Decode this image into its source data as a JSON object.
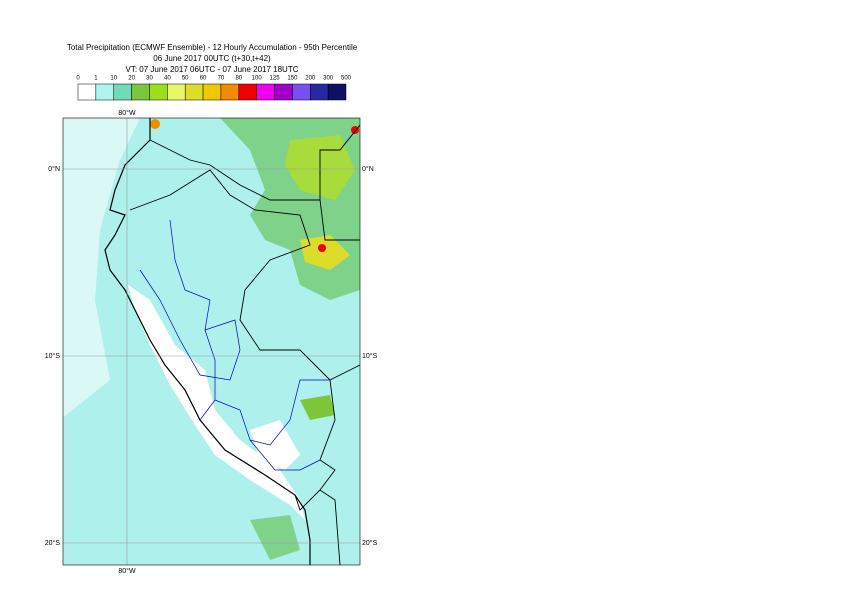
{
  "header": {
    "title": "Total Precipitation (ECMWF Ensemble) - 12 Hourly Accumulation - 95th Percentile",
    "run": "06 June 2017 00UTC (t+30,t+42)",
    "valid": "VT: 07 June 2017 06UTC - 07 June 2017 18UTC"
  },
  "legend": {
    "levels": [
      0,
      1,
      10,
      20,
      30,
      40,
      50,
      60,
      70,
      80,
      100,
      125,
      150,
      200,
      300,
      500
    ],
    "colors": [
      "#ffffff",
      "#aef5f0",
      "#6fdbb8",
      "#7cc63a",
      "#9ade1c",
      "#e8f766",
      "#dcdc2a",
      "#f0c800",
      "#f08c00",
      "#f00000",
      "#f000f0",
      "#a000c8",
      "#7850f0",
      "#2828a0",
      "#101060"
    ]
  },
  "map": {
    "lon_labels": [
      "80°W"
    ],
    "lat_labels": [
      "0°N",
      "10°S",
      "20°S"
    ]
  }
}
